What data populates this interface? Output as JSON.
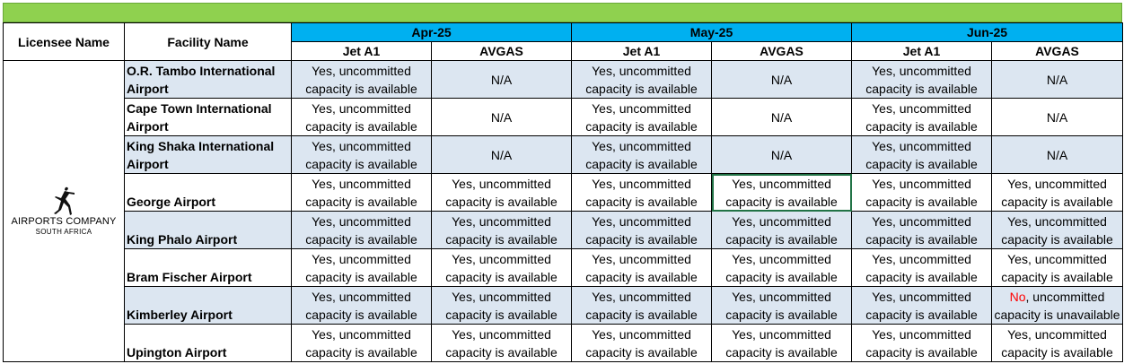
{
  "headers": {
    "licensee": "Licensee Name",
    "facility": "Facility Name",
    "months": [
      "Apr-25",
      "May-25",
      "Jun-25"
    ],
    "fuels": [
      "Jet A1",
      "AVGAS"
    ]
  },
  "logo": {
    "icon": "leaping-figure-icon",
    "name": "AIRPORTS COMPANY",
    "sub": "SOUTH AFRICA"
  },
  "colors": {
    "top_bar": "#8fd14f",
    "month_header": "#00b0f0",
    "row_shade": "#dce6f1",
    "no_text": "#ff0000"
  },
  "rows": [
    {
      "facility": "O.R. Tambo International Airport",
      "cells": [
        "Yes, uncommitted capacity is available",
        "N/A",
        "Yes, uncommitted capacity is available",
        "N/A",
        "Yes, uncommitted capacity is available",
        "N/A"
      ]
    },
    {
      "facility": "Cape Town International Airport",
      "cells": [
        "Yes, uncommitted capacity is available",
        "N/A",
        "Yes, uncommitted capacity is available",
        "N/A",
        "Yes, uncommitted capacity is available",
        "N/A"
      ]
    },
    {
      "facility": "King Shaka International Airport",
      "cells": [
        "Yes, uncommitted capacity is available",
        "N/A",
        "Yes, uncommitted capacity is available",
        "N/A",
        "Yes, uncommitted capacity is available",
        "N/A"
      ]
    },
    {
      "facility": "George Airport",
      "cells": [
        "Yes, uncommitted capacity is available",
        "Yes, uncommitted capacity is available",
        "Yes, uncommitted capacity is available",
        "Yes, uncommitted capacity is available",
        "Yes, uncommitted capacity is available",
        "Yes, uncommitted capacity is available"
      ]
    },
    {
      "facility": "King Phalo Airport",
      "cells": [
        "Yes, uncommitted capacity is available",
        "Yes, uncommitted capacity is available",
        "Yes, uncommitted capacity is available",
        "Yes, uncommitted capacity is available",
        "Yes, uncommitted capacity is available",
        "Yes, uncommitted capacity is available"
      ]
    },
    {
      "facility": "Bram Fischer Airport",
      "cells": [
        "Yes, uncommitted capacity is available",
        "Yes, uncommitted capacity is available",
        "Yes, uncommitted capacity is available",
        "Yes, uncommitted capacity is available",
        "Yes, uncommitted capacity is available",
        "Yes, uncommitted capacity is available"
      ]
    },
    {
      "facility": "Kimberley Airport",
      "cells": [
        "Yes, uncommitted capacity is available",
        "Yes, uncommitted capacity is available",
        "Yes, uncommitted capacity is available",
        "Yes, uncommitted capacity is available",
        "Yes, uncommitted capacity is available",
        "No, uncommitted capacity is unavailable"
      ]
    },
    {
      "facility": "Upington Airport",
      "cells": [
        "Yes, uncommitted capacity is available",
        "Yes, uncommitted capacity is available",
        "Yes, uncommitted capacity is available",
        "Yes, uncommitted capacity is available",
        "Yes, uncommitted capacity is available",
        "Yes, uncommitted capacity is available"
      ]
    }
  ]
}
